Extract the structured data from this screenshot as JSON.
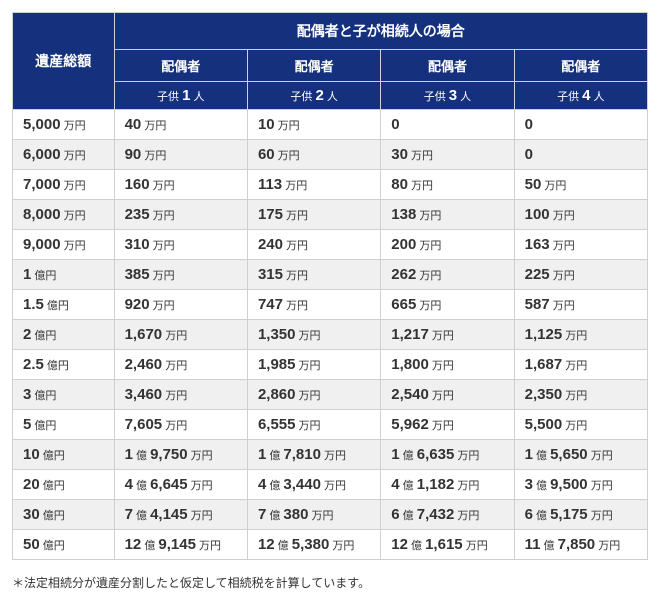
{
  "header": {
    "main": "配偶者と子が相続人の場合",
    "rowLabel": "遺産総額",
    "spouse": "配偶者",
    "children": [
      "子供 1 人",
      "子供 2 人",
      "子供 3 人",
      "子供 4 人"
    ]
  },
  "rows": [
    {
      "estate": {
        "n": "5,000",
        "u": "万円"
      },
      "c": [
        {
          "n": "40",
          "u": "万円"
        },
        {
          "n": "10",
          "u": "万円"
        },
        {
          "n": "0",
          "u": ""
        },
        {
          "n": "0",
          "u": ""
        }
      ]
    },
    {
      "estate": {
        "n": "6,000",
        "u": "万円"
      },
      "c": [
        {
          "n": "90",
          "u": "万円"
        },
        {
          "n": "60",
          "u": "万円"
        },
        {
          "n": "30",
          "u": "万円"
        },
        {
          "n": "0",
          "u": ""
        }
      ]
    },
    {
      "estate": {
        "n": "7,000",
        "u": "万円"
      },
      "c": [
        {
          "n": "160",
          "u": "万円"
        },
        {
          "n": "113",
          "u": "万円"
        },
        {
          "n": "80",
          "u": "万円"
        },
        {
          "n": "50",
          "u": "万円"
        }
      ]
    },
    {
      "estate": {
        "n": "8,000",
        "u": "万円"
      },
      "c": [
        {
          "n": "235",
          "u": "万円"
        },
        {
          "n": "175",
          "u": "万円"
        },
        {
          "n": "138",
          "u": "万円"
        },
        {
          "n": "100",
          "u": "万円"
        }
      ]
    },
    {
      "estate": {
        "n": "9,000",
        "u": "万円"
      },
      "c": [
        {
          "n": "310",
          "u": "万円"
        },
        {
          "n": "240",
          "u": "万円"
        },
        {
          "n": "200",
          "u": "万円"
        },
        {
          "n": "163",
          "u": "万円"
        }
      ]
    },
    {
      "estate": {
        "n": "1",
        "u": "億円"
      },
      "c": [
        {
          "n": "385",
          "u": "万円"
        },
        {
          "n": "315",
          "u": "万円"
        },
        {
          "n": "262",
          "u": "万円"
        },
        {
          "n": "225",
          "u": "万円"
        }
      ]
    },
    {
      "estate": {
        "n": "1.5",
        "u": "億円"
      },
      "c": [
        {
          "n": "920",
          "u": "万円"
        },
        {
          "n": "747",
          "u": "万円"
        },
        {
          "n": "665",
          "u": "万円"
        },
        {
          "n": "587",
          "u": "万円"
        }
      ]
    },
    {
      "estate": {
        "n": "2",
        "u": "億円"
      },
      "c": [
        {
          "n": "1,670",
          "u": "万円"
        },
        {
          "n": "1,350",
          "u": "万円"
        },
        {
          "n": "1,217",
          "u": "万円"
        },
        {
          "n": "1,125",
          "u": "万円"
        }
      ]
    },
    {
      "estate": {
        "n": "2.5",
        "u": "億円"
      },
      "c": [
        {
          "n": "2,460",
          "u": "万円"
        },
        {
          "n": "1,985",
          "u": "万円"
        },
        {
          "n": "1,800",
          "u": "万円"
        },
        {
          "n": "1,687",
          "u": "万円"
        }
      ]
    },
    {
      "estate": {
        "n": "3",
        "u": "億円"
      },
      "c": [
        {
          "n": "3,460",
          "u": "万円"
        },
        {
          "n": "2,860",
          "u": "万円"
        },
        {
          "n": "2,540",
          "u": "万円"
        },
        {
          "n": "2,350",
          "u": "万円"
        }
      ]
    },
    {
      "estate": {
        "n": "5",
        "u": "億円"
      },
      "c": [
        {
          "n": "7,605",
          "u": "万円"
        },
        {
          "n": "6,555",
          "u": "万円"
        },
        {
          "n": "5,962",
          "u": "万円"
        },
        {
          "n": "5,500",
          "u": "万円"
        }
      ]
    },
    {
      "estate": {
        "n": "10",
        "u": "億円"
      },
      "c": [
        {
          "t": "1 億 9,750 万円"
        },
        {
          "t": "1 億 7,810 万円"
        },
        {
          "t": "1 億 6,635 万円"
        },
        {
          "t": "1 億 5,650 万円"
        }
      ]
    },
    {
      "estate": {
        "n": "20",
        "u": "億円"
      },
      "c": [
        {
          "t": "4 億 6,645 万円"
        },
        {
          "t": "4 億 3,440 万円"
        },
        {
          "t": "4 億 1,182 万円"
        },
        {
          "t": "3 億 9,500 万円"
        }
      ]
    },
    {
      "estate": {
        "n": "30",
        "u": "億円"
      },
      "c": [
        {
          "t": "7 億 4,145 万円"
        },
        {
          "t": "7 億 380 万円"
        },
        {
          "t": "6 億 7,432 万円"
        },
        {
          "t": "6 億 5,175 万円"
        }
      ]
    },
    {
      "estate": {
        "n": "50",
        "u": "億円"
      },
      "c": [
        {
          "t": "12 億 9,145 万円"
        },
        {
          "t": "12 億 5,380 万円"
        },
        {
          "t": "12 億 1,615 万円"
        },
        {
          "t": "11 億 7,850 万円"
        }
      ]
    }
  ],
  "footnote": "＊法定相続分が遺産分割したと仮定して相続税を計算しています。"
}
